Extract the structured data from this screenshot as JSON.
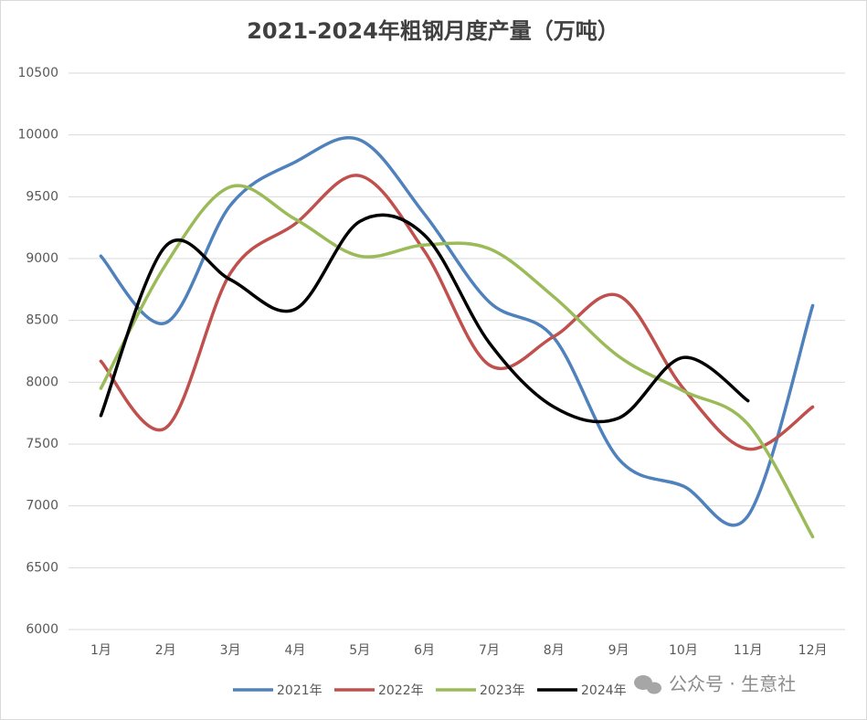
{
  "chart_data": {
    "type": "line",
    "title": "2021-2024年粗钢月度产量（万吨）",
    "categories": [
      "1月",
      "2月",
      "3月",
      "4月",
      "5月",
      "6月",
      "7月",
      "8月",
      "9月",
      "10月",
      "11月",
      "12月"
    ],
    "series": [
      {
        "name": "2021年",
        "color": "#4f81bd",
        "values": [
          9020,
          8480,
          9430,
          9780,
          9960,
          9360,
          8650,
          8360,
          7380,
          7160,
          6920,
          8620
        ]
      },
      {
        "name": "2022年",
        "color": "#c0504d",
        "values": [
          8170,
          7630,
          8880,
          9280,
          9670,
          9060,
          8140,
          8370,
          8700,
          7950,
          7460,
          7800
        ]
      },
      {
        "name": "2023年",
        "color": "#9bbb59",
        "values": [
          7950,
          8950,
          9580,
          9320,
          9020,
          9110,
          9080,
          8690,
          8210,
          7930,
          7660,
          6750
        ]
      },
      {
        "name": "2024年",
        "color": "#000000",
        "values": [
          7730,
          9100,
          8830,
          8590,
          9300,
          9190,
          8320,
          7800,
          7710,
          8200,
          7850,
          null
        ]
      }
    ],
    "ylim": [
      6000,
      10500
    ],
    "yticks": [
      6000,
      6500,
      7000,
      7500,
      8000,
      8500,
      9000,
      9500,
      10000,
      10500
    ],
    "grid": true,
    "smooth": true,
    "legend": "bottom",
    "watermark": "公众号 · 生意社"
  }
}
